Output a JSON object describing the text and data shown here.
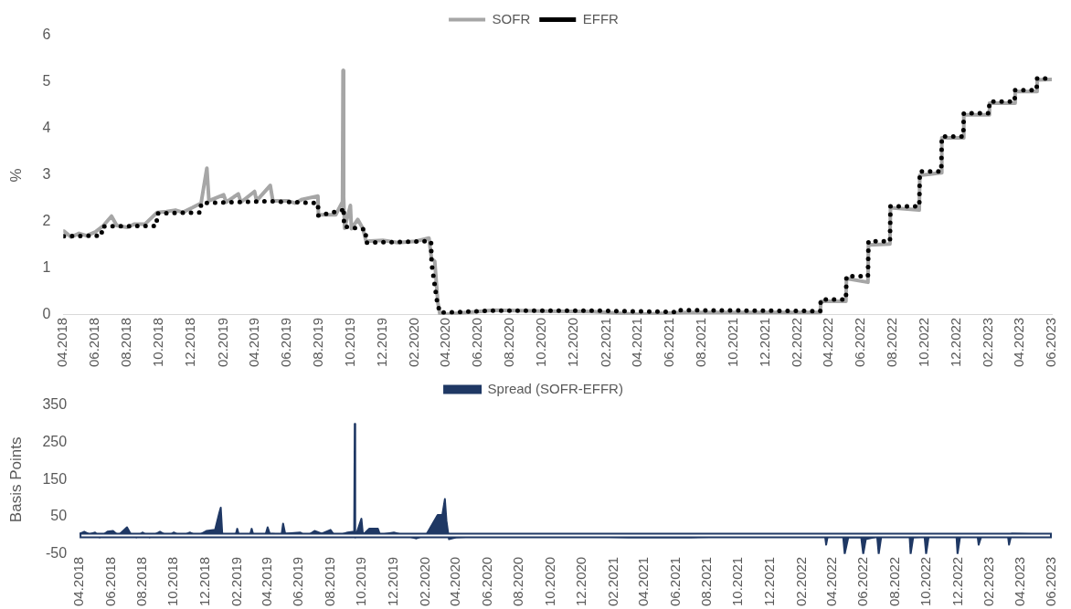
{
  "chart_data": [
    {
      "type": "line",
      "ylabel": "%",
      "legend": "top",
      "xlim": [
        "2018-04",
        "2023-06"
      ],
      "ylim": [
        0,
        6
      ],
      "yticks": [
        0,
        1,
        2,
        3,
        4,
        5,
        6
      ],
      "xticks": [
        {
          "value": "2018-04",
          "label": "04.2018"
        },
        {
          "value": "2018-06",
          "label": "06.2018"
        },
        {
          "value": "2018-08",
          "label": "08.2018"
        },
        {
          "value": "2018-10",
          "label": "10.2018"
        },
        {
          "value": "2018-12",
          "label": "12.2018"
        },
        {
          "value": "2019-02",
          "label": "02.2019"
        },
        {
          "value": "2019-04",
          "label": "04.2019"
        },
        {
          "value": "2019-06",
          "label": "06.2019"
        },
        {
          "value": "2019-08",
          "label": "08.2019"
        },
        {
          "value": "2019-10",
          "label": "10.2019"
        },
        {
          "value": "2019-12",
          "label": "12.2019"
        },
        {
          "value": "2020-02",
          "label": "02.2020"
        },
        {
          "value": "2020-04",
          "label": "04.2020"
        },
        {
          "value": "2020-06",
          "label": "06.2020"
        },
        {
          "value": "2020-08",
          "label": "08.2020"
        },
        {
          "value": "2020-10",
          "label": "10.2020"
        },
        {
          "value": "2020-12",
          "label": "12.2020"
        },
        {
          "value": "2021-02",
          "label": "02.2021"
        },
        {
          "value": "2021-04",
          "label": "04.2021"
        },
        {
          "value": "2021-06",
          "label": "06.2021"
        },
        {
          "value": "2021-08",
          "label": "08.2021"
        },
        {
          "value": "2021-10",
          "label": "10.2021"
        },
        {
          "value": "2021-12",
          "label": "12.2021"
        },
        {
          "value": "2022-02",
          "label": "02.2022"
        },
        {
          "value": "2022-04",
          "label": "04.2022"
        },
        {
          "value": "2022-06",
          "label": "06.2022"
        },
        {
          "value": "2022-08",
          "label": "08.2022"
        },
        {
          "value": "2022-10",
          "label": "10.2022"
        },
        {
          "value": "2022-12",
          "label": "12.2022"
        },
        {
          "value": "2023-02",
          "label": "02.2023"
        },
        {
          "value": "2023-04",
          "label": "04.2023"
        },
        {
          "value": "2023-06",
          "label": "06.2023"
        }
      ],
      "series": [
        {
          "name": "SOFR",
          "color": "#a6a6a6",
          "line_style": "solid",
          "x": [
            "2018-04-02",
            "2018-04-16",
            "2018-05-01",
            "2018-05-15",
            "2018-06-01",
            "2018-06-15",
            "2018-07-02",
            "2018-07-12",
            "2018-08-01",
            "2018-08-15",
            "2018-09-04",
            "2018-09-27",
            "2018-10-15",
            "2018-11-01",
            "2018-11-15",
            "2018-12-03",
            "2018-12-20",
            "2018-12-31",
            "2019-01-04",
            "2019-02-01",
            "2019-02-06",
            "2019-03-01",
            "2019-03-06",
            "2019-04-01",
            "2019-04-05",
            "2019-05-01",
            "2019-05-06",
            "2019-06-03",
            "2019-06-17",
            "2019-07-01",
            "2019-07-31",
            "2019-08-01",
            "2019-08-15",
            "2019-09-03",
            "2019-09-16",
            "2019-09-17",
            "2019-09-18",
            "2019-09-20",
            "2019-10-01",
            "2019-10-03",
            "2019-10-15",
            "2019-10-25",
            "2019-10-31",
            "2019-12-02",
            "2019-12-31",
            "2020-02-03",
            "2020-02-28",
            "2020-03-04",
            "2020-03-10",
            "2020-03-16",
            "2020-03-20",
            "2020-04-01",
            "2020-07-01",
            "2020-10-01",
            "2021-01-04",
            "2021-04-01",
            "2021-07-01",
            "2021-10-01",
            "2022-01-03",
            "2022-03-16",
            "2022-03-17",
            "2022-05-04",
            "2022-05-05",
            "2022-06-15",
            "2022-06-16",
            "2022-07-27",
            "2022-07-28",
            "2022-09-21",
            "2022-09-22",
            "2022-11-02",
            "2022-11-03",
            "2022-12-14",
            "2022-12-15",
            "2023-02-01",
            "2023-02-02",
            "2023-03-22",
            "2023-03-23",
            "2023-05-03",
            "2023-05-04",
            "2023-06-01"
          ],
          "values": [
            1.8,
            1.67,
            1.75,
            1.7,
            1.78,
            1.9,
            2.12,
            1.92,
            1.88,
            1.95,
            1.95,
            2.2,
            2.22,
            2.25,
            2.2,
            2.3,
            2.4,
            3.15,
            2.45,
            2.58,
            2.42,
            2.6,
            2.42,
            2.65,
            2.45,
            2.78,
            2.45,
            2.45,
            2.4,
            2.48,
            2.55,
            2.15,
            2.15,
            2.15,
            2.43,
            5.25,
            2.55,
            1.86,
            2.35,
            1.85,
            2.05,
            1.85,
            1.58,
            1.6,
            1.55,
            1.58,
            1.65,
            1.2,
            1.15,
            0.26,
            0.01,
            0.01,
            0.1,
            0.08,
            0.07,
            0.01,
            0.05,
            0.05,
            0.05,
            0.05,
            0.29,
            0.29,
            0.78,
            0.7,
            1.5,
            1.52,
            2.3,
            2.25,
            3.0,
            3.05,
            3.8,
            3.8,
            4.3,
            4.3,
            4.55,
            4.55,
            4.8,
            4.8,
            5.05,
            5.06
          ]
        },
        {
          "name": "EFFR",
          "color": "#000000",
          "line_style": "dotted",
          "x": [
            "2018-04-02",
            "2018-06-13",
            "2018-06-14",
            "2018-09-26",
            "2018-09-27",
            "2018-12-19",
            "2018-12-20",
            "2019-05-01",
            "2019-07-31",
            "2019-08-01",
            "2019-09-17",
            "2019-09-18",
            "2019-09-19",
            "2019-10-30",
            "2019-10-31",
            "2020-02-28",
            "2020-03-03",
            "2020-03-04",
            "2020-03-15",
            "2020-03-20",
            "2020-04-01",
            "2020-07-01",
            "2021-01-04",
            "2021-06-16",
            "2021-06-17",
            "2022-03-16",
            "2022-03-17",
            "2022-05-04",
            "2022-05-05",
            "2022-06-15",
            "2022-06-16",
            "2022-07-27",
            "2022-07-28",
            "2022-09-21",
            "2022-09-22",
            "2022-11-02",
            "2022-11-03",
            "2022-12-14",
            "2022-12-15",
            "2023-02-01",
            "2023-02-02",
            "2023-03-22",
            "2023-03-23",
            "2023-05-03",
            "2023-05-04",
            "2023-06-01"
          ],
          "values": [
            1.69,
            1.7,
            1.9,
            1.91,
            2.18,
            2.2,
            2.4,
            2.44,
            2.4,
            2.13,
            2.25,
            2.3,
            1.9,
            1.83,
            1.55,
            1.58,
            1.58,
            1.1,
            0.25,
            0.05,
            0.05,
            0.09,
            0.09,
            0.06,
            0.1,
            0.08,
            0.33,
            0.33,
            0.83,
            0.83,
            1.58,
            1.58,
            2.33,
            2.33,
            3.08,
            3.08,
            3.83,
            3.83,
            4.33,
            4.33,
            4.58,
            4.58,
            4.83,
            4.83,
            5.08,
            5.08
          ]
        }
      ]
    },
    {
      "type": "area",
      "ylabel": "Basis Points",
      "legend": "top",
      "xlim": [
        "2018-04",
        "2023-06"
      ],
      "ylim": [
        -50,
        350
      ],
      "yticks": [
        -50,
        50,
        150,
        250,
        350
      ],
      "xticks": [
        {
          "value": "2018-04",
          "label": "04.2018"
        },
        {
          "value": "2018-06",
          "label": "06.2018"
        },
        {
          "value": "2018-08",
          "label": "08.2018"
        },
        {
          "value": "2018-10",
          "label": "10.2018"
        },
        {
          "value": "2018-12",
          "label": "12.2018"
        },
        {
          "value": "2019-02",
          "label": "02.2019"
        },
        {
          "value": "2019-04",
          "label": "04.2019"
        },
        {
          "value": "2019-06",
          "label": "06.2019"
        },
        {
          "value": "2019-08",
          "label": "08.2019"
        },
        {
          "value": "2019-10",
          "label": "10.2019"
        },
        {
          "value": "2019-12",
          "label": "12.2019"
        },
        {
          "value": "2020-02",
          "label": "02.2020"
        },
        {
          "value": "2020-04",
          "label": "04.2020"
        },
        {
          "value": "2020-06",
          "label": "06.2020"
        },
        {
          "value": "2020-08",
          "label": "08.2020"
        },
        {
          "value": "2020-10",
          "label": "10.2020"
        },
        {
          "value": "2020-12",
          "label": "12.2020"
        },
        {
          "value": "2021-02",
          "label": "02.2021"
        },
        {
          "value": "2021-04",
          "label": "04.2021"
        },
        {
          "value": "2021-06",
          "label": "06.2021"
        },
        {
          "value": "2021-08",
          "label": "08.2021"
        },
        {
          "value": "2021-10",
          "label": "10.2021"
        },
        {
          "value": "2021-12",
          "label": "12.2021"
        },
        {
          "value": "2022-02",
          "label": "02.2022"
        },
        {
          "value": "2022-04",
          "label": "04.2022"
        },
        {
          "value": "2022-06",
          "label": "06.2022"
        },
        {
          "value": "2022-08",
          "label": "08.2022"
        },
        {
          "value": "2022-10",
          "label": "10.2022"
        },
        {
          "value": "2022-12",
          "label": "12.2022"
        },
        {
          "value": "2023-02",
          "label": "02.2023"
        },
        {
          "value": "2023-04",
          "label": "04.2023"
        },
        {
          "value": "2023-06",
          "label": "06.2023"
        }
      ],
      "series": [
        {
          "name": "Spread (SOFR-EFFR)",
          "color": "#1f3864",
          "x": [
            "2018-04-02",
            "2018-04-10",
            "2018-04-20",
            "2018-05-01",
            "2018-05-10",
            "2018-05-25",
            "2018-06-05",
            "2018-06-15",
            "2018-07-02",
            "2018-07-10",
            "2018-07-20",
            "2018-08-01",
            "2018-08-15",
            "2018-09-04",
            "2018-09-20",
            "2018-10-01",
            "2018-10-15",
            "2018-11-01",
            "2018-11-15",
            "2018-12-03",
            "2018-12-20",
            "2018-12-28",
            "2018-12-31",
            "2019-01-03",
            "2019-01-29",
            "2019-02-01",
            "2019-02-05",
            "2019-02-26",
            "2019-03-01",
            "2019-03-05",
            "2019-03-28",
            "2019-04-01",
            "2019-04-05",
            "2019-04-28",
            "2019-05-01",
            "2019-05-05",
            "2019-06-03",
            "2019-06-15",
            "2019-07-01",
            "2019-07-15",
            "2019-08-01",
            "2019-08-10",
            "2019-09-03",
            "2019-09-16",
            "2019-09-17",
            "2019-09-18",
            "2019-09-30",
            "2019-10-03",
            "2019-10-15",
            "2019-11-01",
            "2019-11-05",
            "2019-12-02",
            "2019-12-31",
            "2020-01-15",
            "2020-02-03",
            "2020-02-25",
            "2020-03-05",
            "2020-03-10",
            "2020-03-13",
            "2020-03-18",
            "2020-04-01",
            "2020-05-01",
            "2020-07-01",
            "2020-09-01",
            "2020-11-01",
            "2021-01-04",
            "2021-03-01",
            "2021-07-01",
            "2021-09-01",
            "2021-11-01",
            "2022-01-03",
            "2022-03-01",
            "2022-03-18",
            "2022-03-20",
            "2022-03-23",
            "2022-04-22",
            "2022-04-25",
            "2022-05-02",
            "2022-05-27",
            "2022-05-31",
            "2022-06-05",
            "2022-06-27",
            "2022-06-30",
            "2022-07-05",
            "2022-08-29",
            "2022-08-31",
            "2022-09-05",
            "2022-09-27",
            "2022-09-30",
            "2022-10-05",
            "2022-11-28",
            "2022-11-30",
            "2022-12-05",
            "2023-01-03",
            "2023-01-08",
            "2023-01-10",
            "2023-01-15",
            "2023-03-01",
            "2023-03-08",
            "2023-03-10",
            "2023-03-15",
            "2023-06-01"
          ],
          "values": [
            5,
            10,
            3,
            8,
            -5,
            10,
            12,
            0,
            22,
            2,
            -5,
            8,
            -5,
            10,
            -3,
            8,
            -3,
            8,
            -2,
            12,
            15,
            60,
            75,
            2,
            2,
            18,
            -3,
            2,
            18,
            -3,
            2,
            22,
            5,
            2,
            32,
            5,
            8,
            -3,
            12,
            5,
            15,
            -3,
            8,
            10,
            300,
            -5,
            45,
            2,
            18,
            18,
            2,
            8,
            -3,
            -8,
            2,
            55,
            55,
            98,
            40,
            -10,
            -5,
            -3,
            3,
            -2,
            3,
            -3,
            -5,
            -5,
            -3,
            -2,
            -3,
            -3,
            -3,
            -25,
            -3,
            -3,
            -50,
            -5,
            -5,
            -50,
            -10,
            -3,
            -50,
            -3,
            -3,
            -50,
            -5,
            -3,
            -50,
            -3,
            -3,
            -50,
            -3,
            -3,
            -3,
            -25,
            -3,
            -3,
            -3,
            -25,
            5,
            2
          ]
        }
      ]
    }
  ]
}
